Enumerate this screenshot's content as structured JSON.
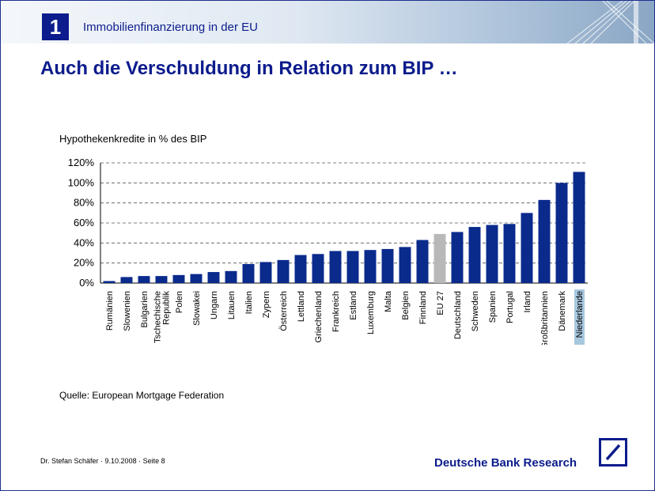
{
  "header": {
    "section_number": "1",
    "section_title": "Immobilienfinanzierung in der EU"
  },
  "title": "Auch die Verschuldung in Relation zum BIP …",
  "colors": {
    "brand": "#0c1c8c",
    "bar": "#0a2a8c",
    "eu_bar": "#b8b8b8",
    "highlight_label_bg": "#a8c8e0"
  },
  "chart_data": {
    "type": "bar",
    "title": "Hypothekenkredite in % des BIP",
    "xlabel": "",
    "ylabel": "",
    "categories": [
      "Rumänien",
      "Slowenien",
      "Bulgarien",
      "Tschechische Republik",
      "Polen",
      "Slowakei",
      "Ungarn",
      "Litauen",
      "Italien",
      "Zypern",
      "Österreich",
      "Lettland",
      "Griechenland",
      "Frankreich",
      "Estland",
      "Luxemburg",
      "Malta",
      "Belgien",
      "Finnland",
      "EU 27",
      "Deutschland",
      "Schweden",
      "Spanien",
      "Portugal",
      "Irland",
      "Großbritannien",
      "Dänemark",
      "Niederlande"
    ],
    "category_lines": [
      [
        "Rumänien"
      ],
      [
        "Slowenien"
      ],
      [
        "Bulgarien"
      ],
      [
        "Tschechische",
        "Republik"
      ],
      [
        "Polen"
      ],
      [
        "Slowakei"
      ],
      [
        "Ungarn"
      ],
      [
        "Litauen"
      ],
      [
        "Italien"
      ],
      [
        "Zypern"
      ],
      [
        "Österreich"
      ],
      [
        "Lettland"
      ],
      [
        "Griechenland"
      ],
      [
        "Frankreich"
      ],
      [
        "Estland"
      ],
      [
        "Luxemburg"
      ],
      [
        "Malta"
      ],
      [
        "Belgien"
      ],
      [
        "Finnland"
      ],
      [
        "EU 27"
      ],
      [
        "Deutschland"
      ],
      [
        "Schweden"
      ],
      [
        "Spanien"
      ],
      [
        "Portugal"
      ],
      [
        "Irland"
      ],
      [
        "Großbritannien"
      ],
      [
        "Dänemark"
      ],
      [
        "Niederlande"
      ]
    ],
    "values": [
      2,
      6,
      7,
      7,
      8,
      9,
      11,
      12,
      19,
      21,
      23,
      28,
      29,
      32,
      32,
      33,
      34,
      36,
      43,
      49,
      51,
      56,
      58,
      59,
      70,
      83,
      100,
      111
    ],
    "highlight_gray": [
      "EU 27"
    ],
    "highlight_label": [
      "Niederlande"
    ],
    "y_ticks": [
      "0%",
      "20%",
      "40%",
      "60%",
      "80%",
      "100%",
      "120%"
    ],
    "ylim": [
      0,
      120
    ],
    "grid": true,
    "legend": "none"
  },
  "source": "Quelle: European Mortgage Federation",
  "footer": {
    "author_line": "Dr. Stefan Schäfer · 9.10.2008 · Seite 8",
    "brand": "Deutsche Bank Research"
  }
}
